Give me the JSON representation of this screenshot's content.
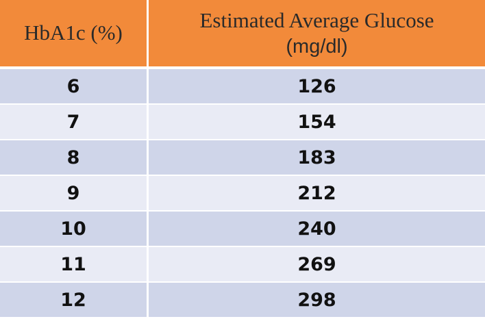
{
  "table": {
    "headers": {
      "col1": "HbA1c (%)",
      "col2_line1": "Estimated Average Glucose",
      "col2_line2": "(mg/dl)"
    },
    "rows": [
      {
        "hba1c": "6",
        "glucose": "126"
      },
      {
        "hba1c": "7",
        "glucose": "154"
      },
      {
        "hba1c": "8",
        "glucose": "183"
      },
      {
        "hba1c": "9",
        "glucose": "212"
      },
      {
        "hba1c": "10",
        "glucose": "240"
      },
      {
        "hba1c": "11",
        "glucose": "269"
      },
      {
        "hba1c": "12",
        "glucose": "298"
      }
    ]
  },
  "colors": {
    "header_bg": "#f28a3a",
    "row_dark": "#cfd5e9",
    "row_light": "#e9ebf5"
  }
}
